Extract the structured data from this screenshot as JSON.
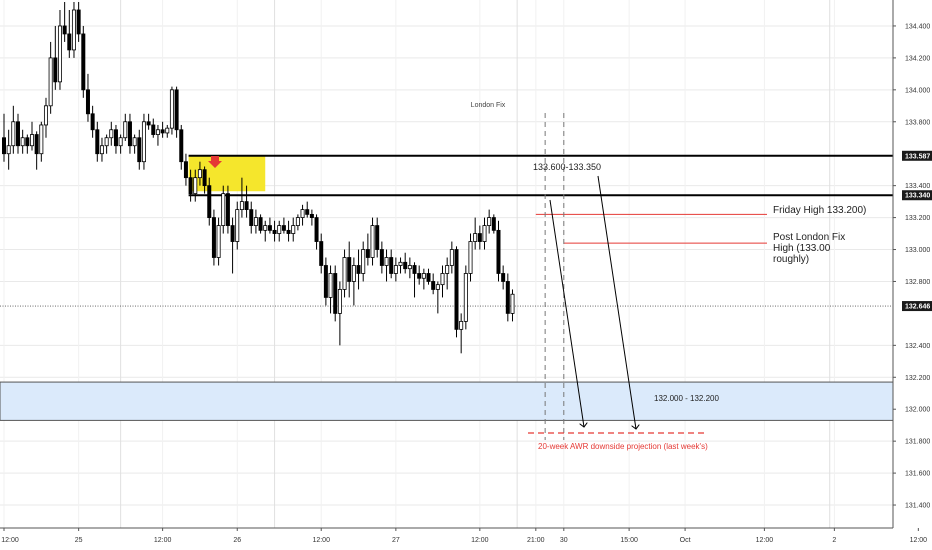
{
  "chart_data": {
    "type": "candlestick",
    "ylim": [
      131.3,
      134.55
    ],
    "y_ticks": [
      {
        "value": 134.4,
        "label": "134.400"
      },
      {
        "value": 134.2,
        "label": "134.200"
      },
      {
        "value": 134.0,
        "label": "134.000"
      },
      {
        "value": 133.8,
        "label": "133.800"
      },
      {
        "value": 133.4,
        "label": "133.400"
      },
      {
        "value": 133.2,
        "label": "133.200"
      },
      {
        "value": 133.0,
        "label": "133.000"
      },
      {
        "value": 132.8,
        "label": "132.800"
      },
      {
        "value": 132.4,
        "label": "132.400"
      },
      {
        "value": 132.2,
        "label": "132.200"
      },
      {
        "value": 132.0,
        "label": "132.000"
      },
      {
        "value": 131.8,
        "label": "131.800"
      },
      {
        "value": 131.6,
        "label": "131.600"
      },
      {
        "value": 131.4,
        "label": "131.400"
      }
    ],
    "price_labels": [
      {
        "value": 133.587,
        "label": "133.587",
        "style": "dark"
      },
      {
        "value": 133.34,
        "label": "133.340",
        "style": "dark"
      },
      {
        "value": 132.646,
        "label": "132.646",
        "style": "dark"
      }
    ],
    "x_ticks": [
      "12:00",
      "25",
      "12:00",
      "26",
      "12:00",
      "27",
      "12:00",
      "21:00",
      "30",
      "15:00",
      "Oct",
      "12:00",
      "2",
      "12:00"
    ],
    "x_tick_bars": [
      0,
      16,
      34,
      50,
      68,
      84,
      102,
      114,
      120,
      134,
      146,
      163,
      178,
      196
    ],
    "day_separator_bars": [
      25,
      58,
      110,
      177
    ],
    "candles": [
      [
        133.7,
        133.85,
        133.55,
        133.6
      ],
      [
        133.6,
        133.75,
        133.5,
        133.65
      ],
      [
        133.65,
        133.9,
        133.6,
        133.8
      ],
      [
        133.8,
        133.85,
        133.6,
        133.65
      ],
      [
        133.65,
        133.75,
        133.6,
        133.7
      ],
      [
        133.7,
        133.72,
        133.6,
        133.65
      ],
      [
        133.65,
        133.8,
        133.62,
        133.72
      ],
      [
        133.72,
        133.74,
        133.5,
        133.6
      ],
      [
        133.6,
        133.8,
        133.55,
        133.78
      ],
      [
        133.78,
        133.95,
        133.7,
        133.9
      ],
      [
        133.9,
        134.3,
        133.85,
        134.2
      ],
      [
        134.2,
        134.4,
        134.0,
        134.05
      ],
      [
        134.05,
        134.5,
        134.0,
        134.4
      ],
      [
        134.4,
        134.55,
        134.3,
        134.35
      ],
      [
        134.35,
        134.5,
        134.2,
        134.25
      ],
      [
        134.25,
        134.55,
        134.2,
        134.5
      ],
      [
        134.5,
        134.55,
        134.3,
        134.35
      ],
      [
        134.35,
        134.4,
        133.95,
        134.0
      ],
      [
        134.0,
        134.1,
        133.8,
        133.85
      ],
      [
        133.85,
        133.9,
        133.7,
        133.75
      ],
      [
        133.75,
        133.8,
        133.55,
        133.6
      ],
      [
        133.6,
        133.7,
        133.55,
        133.65
      ],
      [
        133.65,
        133.72,
        133.6,
        133.7
      ],
      [
        133.7,
        133.8,
        133.65,
        133.75
      ],
      [
        133.75,
        133.78,
        133.6,
        133.65
      ],
      [
        133.65,
        133.72,
        133.6,
        133.7
      ],
      [
        133.7,
        133.85,
        133.68,
        133.8
      ],
      [
        133.8,
        133.85,
        133.6,
        133.65
      ],
      [
        133.65,
        133.72,
        133.6,
        133.7
      ],
      [
        133.7,
        133.75,
        133.5,
        133.55
      ],
      [
        133.55,
        133.85,
        133.5,
        133.8
      ],
      [
        133.8,
        133.85,
        133.75,
        133.78
      ],
      [
        133.78,
        133.82,
        133.7,
        133.72
      ],
      [
        133.72,
        133.78,
        133.65,
        133.75
      ],
      [
        133.75,
        133.8,
        133.7,
        133.73
      ],
      [
        133.73,
        133.78,
        133.7,
        133.76
      ],
      [
        133.76,
        134.02,
        133.72,
        134.0
      ],
      [
        134.0,
        134.02,
        133.7,
        133.75
      ],
      [
        133.75,
        133.78,
        133.5,
        133.55
      ],
      [
        133.55,
        133.6,
        133.4,
        133.45
      ],
      [
        133.45,
        133.5,
        133.3,
        133.35
      ],
      [
        133.35,
        133.5,
        133.3,
        133.45
      ],
      [
        133.45,
        133.55,
        133.4,
        133.5
      ],
      [
        133.5,
        133.52,
        133.35,
        133.4
      ],
      [
        133.4,
        133.45,
        133.15,
        133.2
      ],
      [
        133.2,
        133.25,
        132.9,
        132.95
      ],
      [
        132.95,
        133.2,
        132.9,
        133.15
      ],
      [
        133.15,
        133.4,
        133.1,
        133.35
      ],
      [
        133.35,
        133.4,
        133.1,
        133.15
      ],
      [
        133.15,
        133.2,
        132.85,
        133.05
      ],
      [
        133.05,
        133.3,
        133.0,
        133.25
      ],
      [
        133.25,
        133.45,
        133.2,
        133.3
      ],
      [
        133.3,
        133.4,
        133.2,
        133.25
      ],
      [
        133.25,
        133.3,
        133.1,
        133.15
      ],
      [
        133.15,
        133.25,
        133.1,
        133.2
      ],
      [
        133.2,
        133.22,
        133.1,
        133.12
      ],
      [
        133.12,
        133.18,
        133.05,
        133.15
      ],
      [
        133.15,
        133.2,
        133.1,
        133.12
      ],
      [
        133.12,
        133.18,
        133.05,
        133.1
      ],
      [
        133.1,
        133.18,
        133.05,
        133.15
      ],
      [
        133.15,
        133.2,
        133.1,
        133.12
      ],
      [
        133.12,
        133.18,
        133.05,
        133.1
      ],
      [
        133.1,
        133.2,
        133.05,
        133.15
      ],
      [
        133.15,
        133.22,
        133.12,
        133.2
      ],
      [
        133.2,
        133.28,
        133.15,
        133.25
      ],
      [
        133.25,
        133.3,
        133.2,
        133.22
      ],
      [
        133.22,
        133.25,
        133.15,
        133.2
      ],
      [
        133.2,
        133.22,
        133.0,
        133.05
      ],
      [
        133.05,
        133.1,
        132.85,
        132.9
      ],
      [
        132.9,
        132.95,
        132.65,
        132.7
      ],
      [
        132.7,
        132.9,
        132.6,
        132.85
      ],
      [
        132.85,
        132.9,
        132.55,
        132.6
      ],
      [
        132.6,
        132.8,
        132.4,
        132.75
      ],
      [
        132.75,
        133.0,
        132.7,
        132.95
      ],
      [
        132.95,
        133.05,
        132.7,
        132.8
      ],
      [
        132.8,
        132.95,
        132.65,
        132.9
      ],
      [
        132.9,
        133.0,
        132.75,
        132.85
      ],
      [
        132.85,
        133.05,
        132.8,
        133.0
      ],
      [
        133.0,
        133.1,
        132.9,
        132.95
      ],
      [
        132.95,
        133.2,
        132.9,
        133.15
      ],
      [
        133.15,
        133.2,
        132.95,
        133.0
      ],
      [
        133.0,
        133.05,
        132.85,
        132.9
      ],
      [
        132.9,
        133.0,
        132.8,
        132.95
      ],
      [
        132.95,
        133.0,
        132.82,
        132.85
      ],
      [
        132.85,
        132.95,
        132.8,
        132.9
      ],
      [
        132.9,
        132.95,
        132.85,
        132.92
      ],
      [
        132.92,
        132.98,
        132.85,
        132.88
      ],
      [
        132.88,
        132.95,
        132.82,
        132.9
      ],
      [
        132.9,
        132.92,
        132.7,
        132.85
      ],
      [
        132.85,
        132.9,
        132.78,
        132.82
      ],
      [
        132.82,
        132.88,
        132.75,
        132.85
      ],
      [
        132.85,
        132.88,
        132.78,
        132.8
      ],
      [
        132.8,
        132.85,
        132.72,
        132.75
      ],
      [
        132.75,
        132.8,
        132.6,
        132.78
      ],
      [
        132.78,
        132.9,
        132.7,
        132.85
      ],
      [
        132.85,
        132.95,
        132.75,
        132.9
      ],
      [
        132.9,
        133.05,
        132.85,
        133.0
      ],
      [
        133.0,
        133.02,
        132.45,
        132.5
      ],
      [
        132.5,
        132.6,
        132.35,
        132.55
      ],
      [
        132.55,
        132.9,
        132.5,
        132.85
      ],
      [
        132.85,
        133.1,
        132.8,
        133.05
      ],
      [
        133.05,
        133.2,
        133.0,
        133.1
      ],
      [
        133.1,
        133.15,
        133.0,
        133.05
      ],
      [
        133.05,
        133.2,
        133.0,
        133.15
      ],
      [
        133.15,
        133.25,
        133.1,
        133.2
      ],
      [
        133.2,
        133.22,
        133.1,
        133.12
      ],
      [
        133.12,
        133.18,
        132.8,
        132.85
      ],
      [
        132.85,
        132.9,
        132.75,
        132.8
      ],
      [
        132.8,
        132.85,
        132.55,
        132.6
      ],
      [
        132.6,
        132.75,
        132.55,
        132.72
      ]
    ],
    "zones": [
      {
        "from": 133.587,
        "to": 133.365,
        "color": "#f5e62c"
      },
      {
        "from": 132.17,
        "to": 131.93,
        "color": "#dbeafb"
      }
    ],
    "levels": [
      {
        "value": 133.587,
        "color": "#000000"
      },
      {
        "value": 133.34,
        "color": "#000000"
      },
      {
        "value": 133.22,
        "color": "#e53935"
      },
      {
        "value": 133.04,
        "color": "#e53935"
      },
      {
        "value": 132.646,
        "color": "#555555"
      }
    ],
    "annotations": {
      "london_fix": "London Fix",
      "range_label": "133.600-133.350",
      "friday_high": "Friday High 133.200)",
      "post_london_fix": [
        "Post London Fix",
        "High (133.00",
        "roughly)"
      ],
      "zone_label": "132.000 - 132.200",
      "awr_projection": "20-week AWR downside projection (last week's)"
    },
    "colors": {
      "bull": "#ffffff",
      "bear": "#000000",
      "red": "#e53935",
      "grid": "#e9e9e9"
    }
  }
}
